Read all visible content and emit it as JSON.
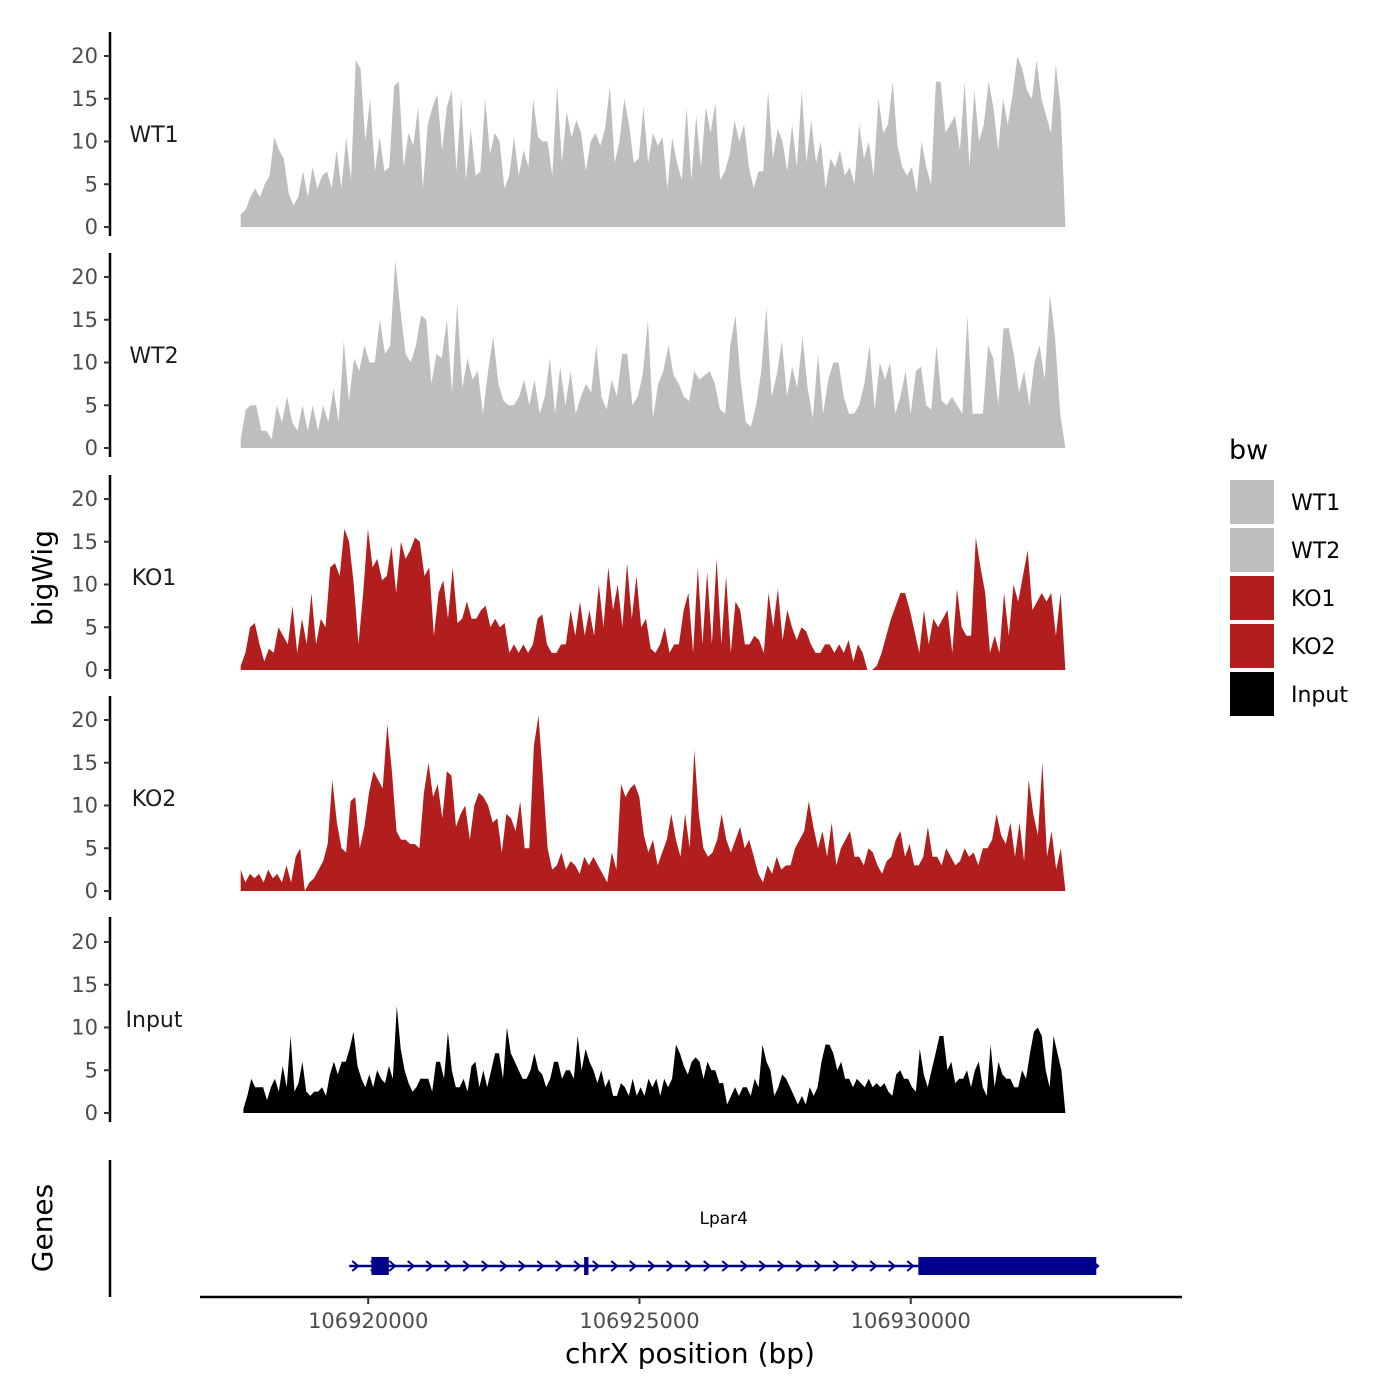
{
  "chart_data": {
    "type": "area",
    "ylabel": "bigWig",
    "xlabel": "chrX position (bp)",
    "genes_label": "Genes",
    "ylim": [
      0,
      23
    ],
    "yticks": [
      "0",
      "5",
      "10",
      "15",
      "20"
    ],
    "xlim": [
      106916900,
      106935000
    ],
    "xticks": [
      {
        "value": 106920000,
        "label": "106920000"
      },
      {
        "value": 106925000,
        "label": "106925000"
      },
      {
        "value": 106930000,
        "label": "106930000"
      }
    ],
    "legend": {
      "title": "bw",
      "entries": [
        {
          "name": "WT1",
          "color": "#bebebe"
        },
        {
          "name": "WT2",
          "color": "#bebebe"
        },
        {
          "name": "KO1",
          "color": "#b21e1e"
        },
        {
          "name": "KO2",
          "color": "#b21e1e"
        },
        {
          "name": "Input",
          "color": "#000000"
        }
      ]
    },
    "tracks": [
      {
        "name": "WT1",
        "color": "#bebebe",
        "x_start": 106917650,
        "x_end": 106932850,
        "values": [
          1.5,
          2,
          3.5,
          4.5,
          3.5,
          5,
          6,
          10.5,
          9,
          8,
          4,
          2.5,
          3.5,
          6.5,
          3.5,
          7,
          4.5,
          6,
          6.5,
          4.5,
          9,
          4.5,
          10.5,
          5.5,
          19.5,
          18.5,
          10,
          15,
          6.5,
          10.5,
          6.5,
          7,
          16.5,
          17,
          7,
          11,
          9.5,
          14,
          4.5,
          12,
          14,
          15.5,
          9,
          14,
          16,
          6.5,
          15,
          5.5,
          11.5,
          6,
          6.5,
          15,
          8.5,
          11,
          10,
          4.5,
          6,
          10.5,
          6,
          9,
          7,
          15,
          10.5,
          10,
          10,
          6,
          16.5,
          7.5,
          13.5,
          10.5,
          12.5,
          11,
          6.5,
          10,
          11,
          9.5,
          11.5,
          16.5,
          7.5,
          10,
          15,
          12,
          7.5,
          8,
          14,
          7.5,
          11,
          9.5,
          10.5,
          4.5,
          10.5,
          7.5,
          5.5,
          14,
          5.5,
          13,
          7,
          14,
          11,
          14.5,
          5.5,
          6.5,
          8.5,
          12.5,
          10,
          12,
          7,
          4.5,
          6.5,
          6.5,
          16,
          8,
          11.5,
          10,
          6.5,
          12,
          7,
          16,
          7.5,
          12.5,
          7.5,
          10,
          4.5,
          8,
          7,
          9,
          6,
          7,
          5,
          12,
          8,
          10,
          6,
          15,
          11,
          12,
          17,
          9.5,
          7,
          6,
          7,
          4,
          10,
          7,
          5,
          17,
          17,
          11,
          12,
          13,
          9,
          17,
          7,
          16,
          10,
          12,
          17,
          14,
          9,
          15,
          12,
          15.5,
          20,
          18.5,
          16,
          15,
          19.5,
          15,
          13,
          11,
          19,
          14,
          0
        ]
      },
      {
        "name": "WT2",
        "color": "#bebebe",
        "x_start": 106917650,
        "x_end": 106932850,
        "values": [
          1,
          4.5,
          5,
          5,
          2,
          2,
          1,
          5,
          3,
          6,
          3,
          2,
          5,
          2,
          5,
          2,
          5,
          3,
          7,
          3,
          12.5,
          5.5,
          10.5,
          9,
          12,
          10,
          10,
          15,
          11,
          12,
          22,
          16,
          11,
          10,
          12,
          15.5,
          15,
          7.5,
          11,
          10.5,
          15,
          6.5,
          17,
          7,
          10.5,
          8,
          9,
          4,
          9,
          13,
          7.5,
          5.5,
          5,
          5,
          6,
          8,
          5,
          8,
          4,
          6,
          10.5,
          4,
          9.5,
          5,
          9,
          4,
          6,
          7.5,
          6.5,
          12,
          6,
          4.5,
          8,
          6,
          11,
          11,
          5,
          6,
          8.5,
          15,
          3.5,
          7.5,
          9,
          12,
          8.5,
          7.5,
          6,
          5.5,
          9,
          8,
          8.5,
          9,
          7.5,
          4.5,
          4,
          12,
          15.5,
          8,
          3,
          2.5,
          5,
          9,
          16.5,
          6,
          8.5,
          12.5,
          6,
          9.5,
          7,
          13,
          7,
          3.5,
          11,
          4,
          8,
          10,
          10,
          6,
          4,
          4,
          5,
          7.5,
          12,
          4.5,
          10,
          8,
          10,
          4,
          6,
          9,
          4,
          9,
          9.5,
          5,
          4.5,
          12,
          5.5,
          5,
          6,
          5,
          4,
          15.5,
          4,
          4,
          4,
          12,
          10.5,
          5,
          14,
          14,
          11,
          6.5,
          9,
          5,
          10,
          12,
          8,
          18,
          13,
          4,
          0
        ]
      },
      {
        "name": "KO1",
        "color": "#b21e1e",
        "x_start": 106917650,
        "x_end": 106932850,
        "values": [
          0.5,
          2,
          5,
          5.5,
          3,
          1,
          2.5,
          2,
          5,
          4,
          3,
          7.5,
          2,
          6,
          3,
          9,
          3,
          6,
          5,
          12,
          12.5,
          11,
          16.5,
          15,
          10,
          3,
          9,
          16.5,
          12,
          13,
          10.5,
          11,
          14.5,
          9,
          15,
          13,
          14,
          15.5,
          15,
          11,
          12,
          4,
          9,
          10.5,
          6,
          12,
          5.5,
          6,
          8,
          6,
          6,
          7,
          7.5,
          5,
          6,
          5,
          5.5,
          2,
          3,
          2,
          3,
          2,
          3,
          6,
          6.5,
          3,
          2,
          2,
          3,
          3,
          7,
          4,
          8,
          4,
          7,
          4,
          10,
          5,
          12,
          7,
          10,
          5,
          12.5,
          6,
          11,
          5,
          6,
          2.5,
          2,
          3,
          5,
          2,
          3,
          3,
          7,
          9,
          2,
          12,
          3,
          11.5,
          3,
          13,
          3,
          11,
          2,
          8,
          7,
          3,
          3,
          4,
          3.5,
          2,
          9,
          5,
          9.5,
          3.5,
          7,
          5,
          3.5,
          5,
          4.5,
          3,
          2,
          2,
          3,
          3,
          2,
          3,
          2,
          3.5,
          1,
          3,
          2,
          0,
          0,
          0.5,
          2,
          4,
          6,
          7.5,
          9,
          9,
          7,
          4.5,
          2,
          7,
          3,
          6,
          5,
          6,
          7,
          2,
          9.5,
          5,
          4,
          4,
          15.5,
          12,
          9,
          2,
          4,
          2,
          9,
          4,
          10,
          8,
          11,
          14,
          7,
          8,
          9,
          8,
          9,
          4,
          9,
          0
        ]
      },
      {
        "name": "KO2",
        "color": "#b21e1e",
        "x_start": 106917650,
        "x_end": 106932850,
        "values": [
          2.5,
          1,
          2,
          1.5,
          2,
          1,
          2.5,
          1.5,
          2,
          1,
          3,
          1,
          4,
          5,
          0,
          1,
          1.5,
          2.5,
          3.5,
          5.5,
          13,
          8,
          5,
          4.5,
          10.5,
          11,
          5,
          7.5,
          11.5,
          14,
          13,
          12,
          19.5,
          14,
          7,
          6,
          6,
          5.5,
          5.5,
          5,
          11.5,
          15,
          11,
          12.5,
          8.5,
          14,
          13.5,
          7.5,
          9,
          10,
          6,
          10,
          11.5,
          11,
          10,
          8,
          8.5,
          4.5,
          9,
          8.5,
          7,
          10.5,
          5,
          5,
          17,
          20.5,
          13,
          5,
          2.5,
          3,
          4.5,
          2.5,
          3.5,
          3,
          2,
          4,
          3,
          4,
          3,
          2,
          1,
          4.5,
          2.5,
          12.5,
          11,
          12,
          12.5,
          11,
          6.5,
          4.5,
          6,
          3,
          4.5,
          6,
          9,
          6,
          4,
          9,
          5,
          16.5,
          9,
          5,
          4,
          4.5,
          6,
          9,
          6,
          4.5,
          6,
          7.5,
          5,
          6,
          4,
          2,
          1,
          3,
          2,
          4,
          2.5,
          3,
          3,
          5,
          6,
          7,
          10.5,
          7.5,
          5,
          7,
          4,
          8,
          3,
          5,
          6,
          7,
          4,
          4,
          3,
          5,
          4.5,
          3,
          2,
          3.5,
          4,
          6,
          7,
          4,
          5.5,
          3,
          3,
          4,
          7.5,
          4,
          4,
          3,
          5,
          4,
          3,
          3.5,
          5,
          4,
          4.5,
          3,
          5,
          5,
          6,
          9,
          6.5,
          5.5,
          8,
          4,
          8,
          3.5,
          13,
          9,
          6.5,
          15,
          4,
          7,
          2.5,
          5,
          0
        ]
      },
      {
        "name": "Input",
        "color": "#000000",
        "x_start": 106917700,
        "x_end": 106932850,
        "values": [
          0.5,
          2,
          4,
          3,
          3,
          3,
          1.5,
          3,
          4,
          2.5,
          5.5,
          3,
          9,
          2.5,
          3.5,
          6,
          2.5,
          2,
          2.5,
          2.5,
          3,
          2,
          4.5,
          6,
          4.5,
          6,
          6,
          7.5,
          9.5,
          5.5,
          4,
          3,
          4.5,
          3,
          5,
          4,
          3.5,
          5.5,
          4,
          12.5,
          7.5,
          5,
          3.5,
          2.5,
          3,
          4,
          4,
          4,
          2.5,
          6,
          6,
          4,
          9.5,
          5,
          3,
          3,
          4,
          2.5,
          5.5,
          6,
          3,
          5,
          3,
          5,
          7,
          7,
          4,
          10,
          7,
          6,
          5,
          4,
          4,
          5,
          7,
          5,
          4.5,
          3,
          4,
          6,
          6,
          4,
          5,
          5,
          4,
          9,
          5,
          7.5,
          6,
          5,
          3.5,
          5,
          3,
          4,
          2,
          2,
          3.5,
          3,
          2,
          4,
          2,
          3,
          2,
          4,
          3,
          4,
          2,
          4,
          3,
          4,
          8,
          7,
          5.5,
          4.5,
          6,
          6.5,
          6,
          4,
          6,
          5,
          5,
          3.5,
          3.5,
          1,
          2,
          3,
          2,
          3,
          3,
          2,
          4,
          3,
          8,
          6,
          5,
          2,
          3,
          4.5,
          4,
          3,
          2,
          1,
          2,
          1,
          3,
          2,
          3,
          6,
          8,
          8,
          7,
          5,
          6,
          4,
          4,
          3,
          4,
          3.5,
          3,
          4,
          3,
          3.5,
          3,
          3.5,
          2.5,
          2,
          4.5,
          5,
          4,
          4,
          3,
          2.5,
          7.5,
          4.5,
          3,
          5,
          7,
          9,
          9,
          5,
          6,
          3.5,
          4,
          4,
          5,
          3,
          5,
          6,
          3,
          2,
          8,
          3,
          6,
          4.5,
          4,
          4,
          3,
          3,
          5,
          4,
          7,
          9.5,
          10,
          9,
          5,
          3,
          9,
          7,
          5,
          0
        ]
      }
    ],
    "gene": {
      "name": "Lpar4",
      "color": "#00008b",
      "start": 106919650,
      "end": 106933420,
      "exons": [
        {
          "start": 106920060,
          "end": 106920380
        },
        {
          "start": 106923980,
          "end": 106924060
        },
        {
          "start": 106930140,
          "end": 106933420
        }
      ]
    }
  }
}
